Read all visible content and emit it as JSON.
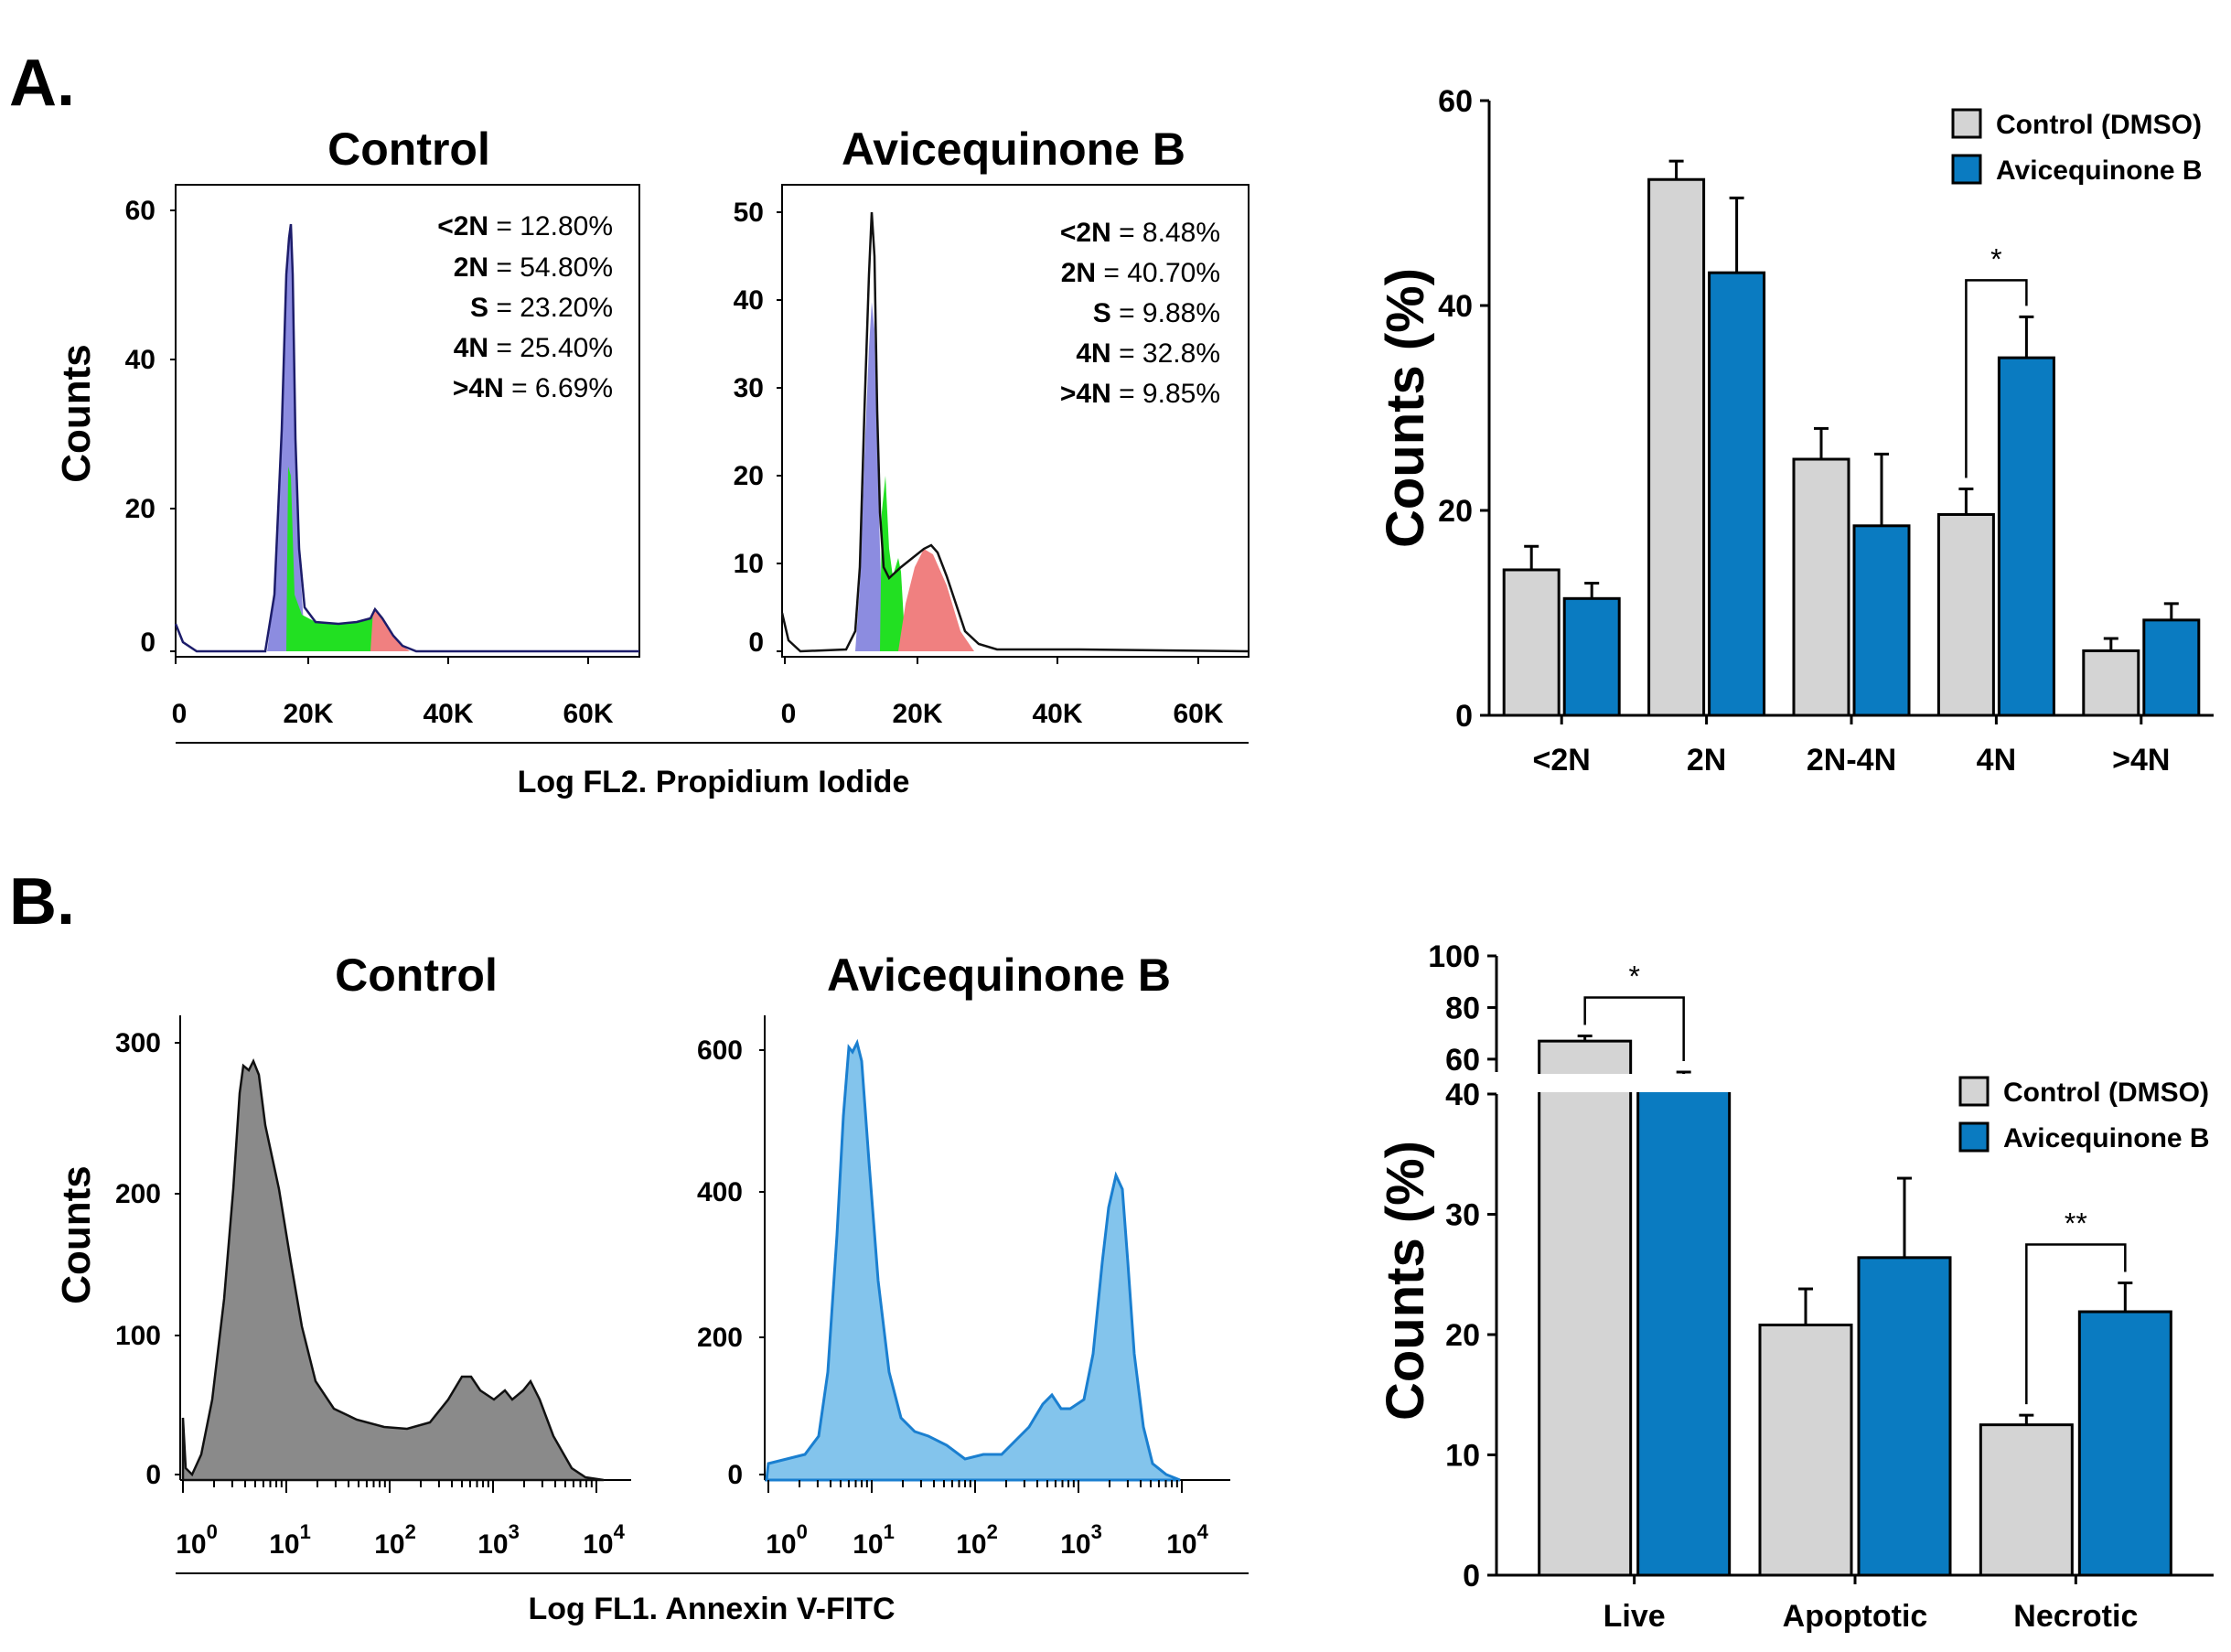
{
  "colors": {
    "control_bar": "#d4d4d4",
    "treated_bar": "#0a7bc1",
    "g1_fill": "#8c8ce0",
    "s_fill": "#22e022",
    "g2_fill": "#f08080",
    "annexin_control": "#8a8a8a",
    "annexin_treated": "#83c4ec",
    "annexin_treated_line": "#1a7fd0"
  },
  "panel_a": {
    "letter": "A.",
    "hist_control": {
      "title": "Control",
      "ylabel": "Counts",
      "y_ticks": [
        "0",
        "20",
        "40",
        "60"
      ],
      "x_ticks": [
        "0",
        "20K",
        "40K",
        "60K"
      ],
      "stats": [
        {
          "label": "<2N",
          "value": " = 12.80%"
        },
        {
          "label": "2N",
          "value": " = 54.80%"
        },
        {
          "label": "S",
          "value": " = 23.20%"
        },
        {
          "label": "4N",
          "value": " = 25.40%"
        },
        {
          "label": ">4N",
          "value": " = 6.69%"
        }
      ]
    },
    "hist_treated": {
      "title": "Avicequinone B",
      "y_ticks": [
        "0",
        "10",
        "20",
        "30",
        "40",
        "50"
      ],
      "x_ticks": [
        "0",
        "20K",
        "40K",
        "60K"
      ],
      "stats": [
        {
          "label": "<2N",
          "value": " = 8.48%"
        },
        {
          "label": "2N",
          "value": " = 40.70%"
        },
        {
          "label": "S",
          "value": " = 9.88%"
        },
        {
          "label": "4N",
          "value": " = 32.8%"
        },
        {
          "label": ">4N",
          "value": " = 9.85%"
        }
      ]
    },
    "xlabel": "Log FL2. Propidium Iodide"
  },
  "panel_b": {
    "letter": "B.",
    "hist_control": {
      "title": "Control",
      "ylabel": "Counts",
      "y_ticks": [
        "0",
        "100",
        "200",
        "300"
      ]
    },
    "hist_treated": {
      "title": "Avicequinone B",
      "y_ticks": [
        "0",
        "200",
        "400",
        "600"
      ]
    },
    "x_ticks": [
      {
        "base": "10",
        "exp": "0"
      },
      {
        "base": "10",
        "exp": "1"
      },
      {
        "base": "10",
        "exp": "2"
      },
      {
        "base": "10",
        "exp": "3"
      },
      {
        "base": "10",
        "exp": "4"
      }
    ],
    "xlabel": "Log  FL1. Annexin V-FITC"
  },
  "chart_data": [
    {
      "type": "bar",
      "title": "",
      "ylabel": "Counts (%)",
      "xlabel": "",
      "ylim": [
        0,
        60
      ],
      "y_ticks": [
        "0",
        "20",
        "40",
        "60"
      ],
      "categories": [
        "<2N",
        "2N",
        "2N-4N",
        "4N",
        ">4N"
      ],
      "series": [
        {
          "name": "Control (DMSO)",
          "values": [
            14.2,
            52.3,
            25.0,
            19.6,
            6.3
          ],
          "errors": [
            2.3,
            1.8,
            3.0,
            2.5,
            1.2
          ]
        },
        {
          "name": "Avicequinone B",
          "values": [
            11.4,
            43.2,
            18.5,
            34.9,
            9.3
          ],
          "errors": [
            1.5,
            7.3,
            7.0,
            4.0,
            1.6
          ]
        }
      ],
      "significance": [
        {
          "category": "4N",
          "label": "*"
        }
      ],
      "legend": "top-right"
    },
    {
      "type": "bar",
      "title": "",
      "ylabel": "Counts (%)",
      "xlabel": "",
      "ylim": [
        0,
        100
      ],
      "axis_break": [
        40,
        55
      ],
      "y_ticks_lower": [
        "0",
        "10",
        "20",
        "30",
        "40"
      ],
      "y_ticks_upper": [
        "60",
        "80",
        "100"
      ],
      "categories": [
        "Live",
        "Apoptotic",
        "Necrotic"
      ],
      "series": [
        {
          "name": "Control (DMSO)",
          "values": [
            67.0,
            20.8,
            12.5
          ],
          "errors": [
            2.0,
            3.0,
            0.8
          ]
        },
        {
          "name": "Avicequinone B",
          "values": [
            50.0,
            26.4,
            21.9
          ],
          "errors": [
            5.0,
            6.6,
            2.4
          ]
        }
      ],
      "significance": [
        {
          "category": "Live",
          "label": "*"
        },
        {
          "category": "Necrotic",
          "label": "**"
        }
      ],
      "legend": "right"
    }
  ]
}
